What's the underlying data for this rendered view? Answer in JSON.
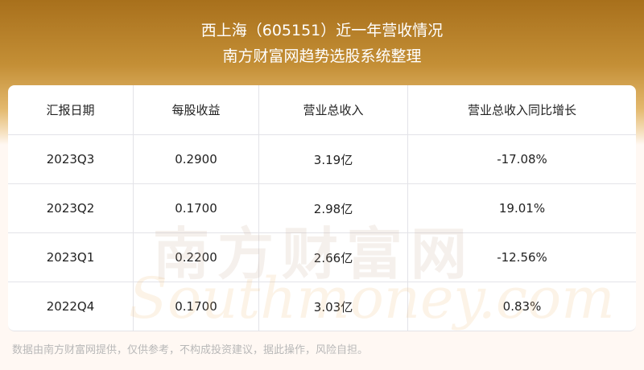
{
  "header": {
    "title": "西上海（605151）近一年营收情况",
    "subtitle": "南方财富网趋势选股系统整理"
  },
  "table": {
    "columns": [
      "汇报日期",
      "每股收益",
      "营业总收入",
      "营业总收入同比增长"
    ],
    "rows": [
      [
        "2023Q3",
        "0.2900",
        "3.19亿",
        "-17.08%"
      ],
      [
        "2023Q2",
        "0.1700",
        "2.98亿",
        "19.01%"
      ],
      [
        "2023Q1",
        "0.2200",
        "2.66亿",
        "-12.56%"
      ],
      [
        "2022Q4",
        "0.1700",
        "3.03亿",
        "0.83%"
      ]
    ]
  },
  "watermark": {
    "cn": "南方财富网",
    "en": "Southmoney.com"
  },
  "footer": "数据由南方财富网提供，仅供参考，不构成投资建议，据此操作，风险自担。"
}
